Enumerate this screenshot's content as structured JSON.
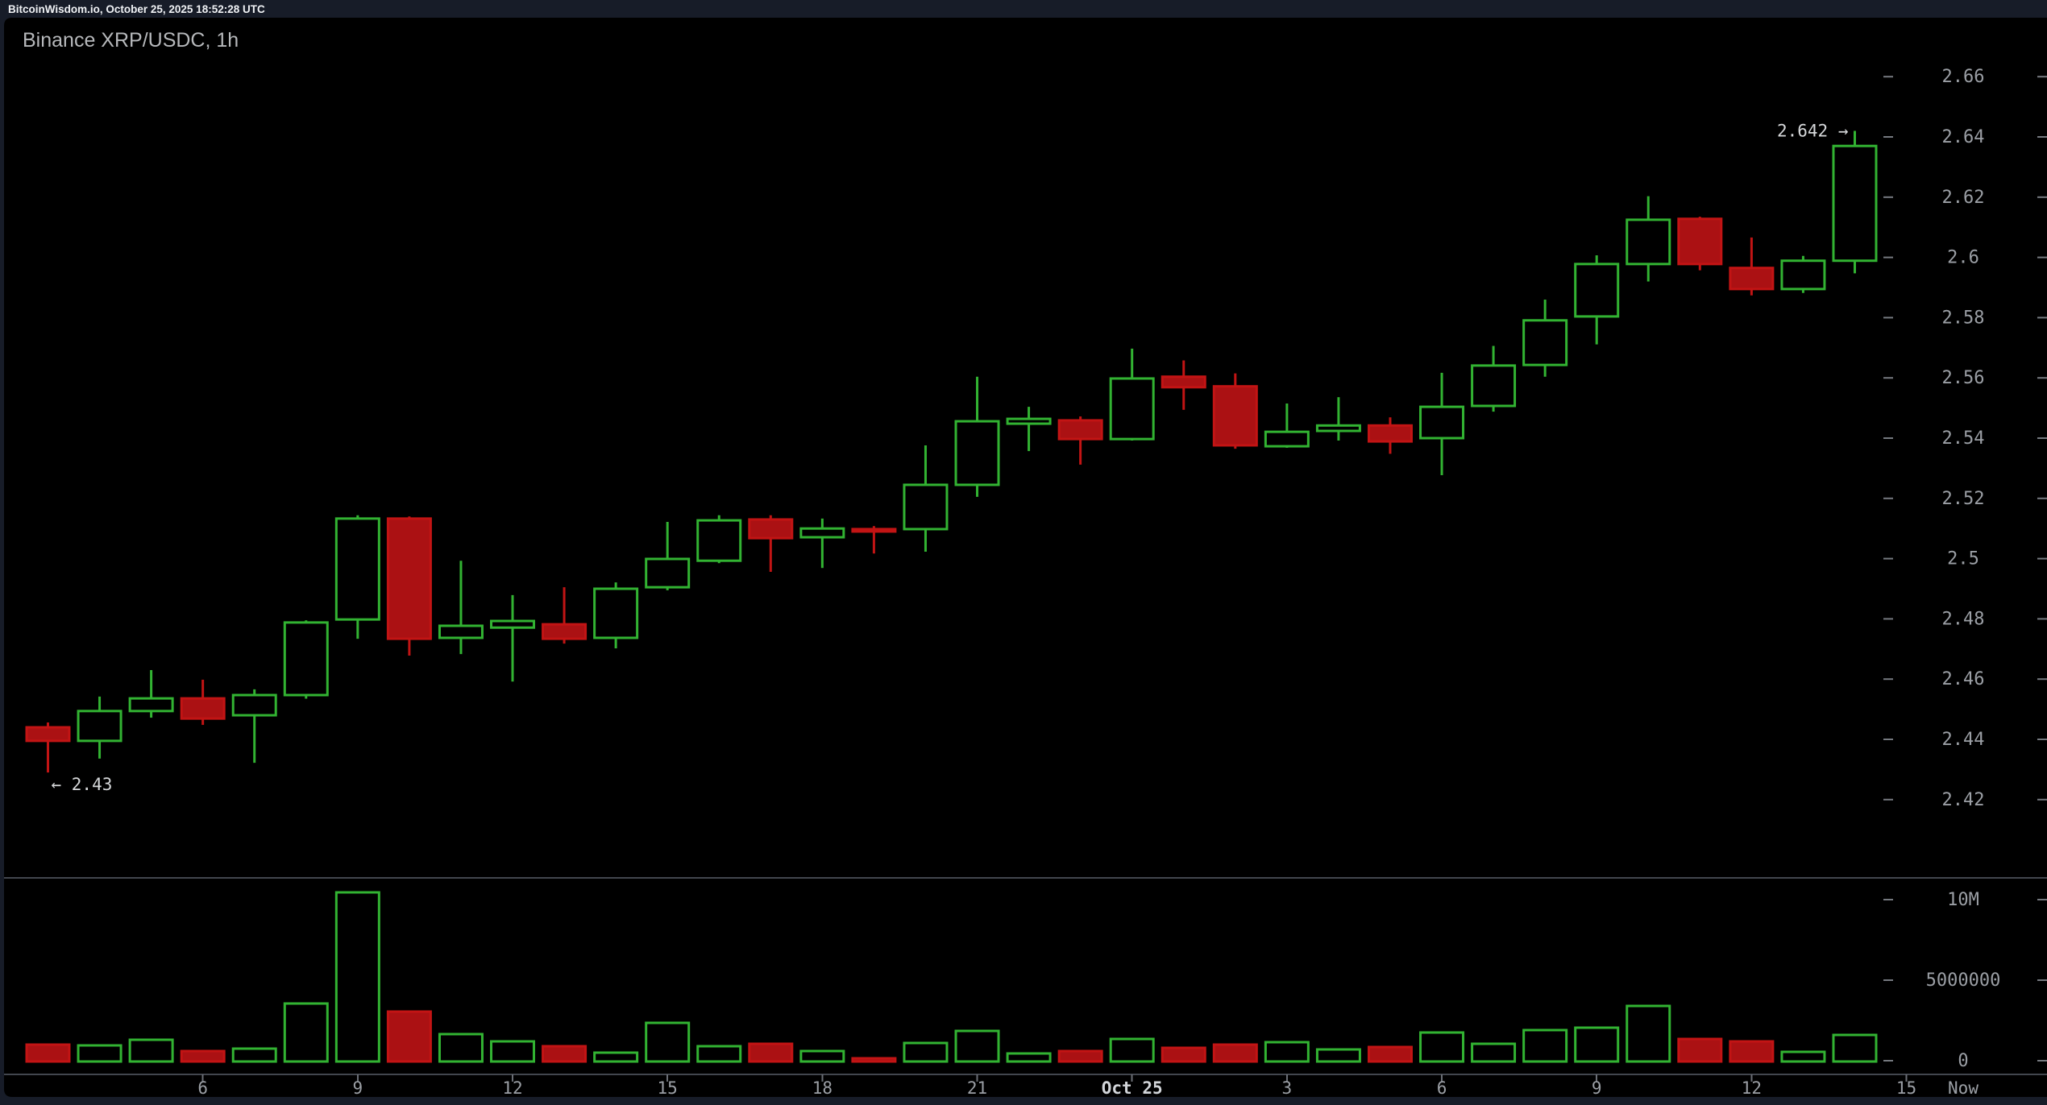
{
  "header": {
    "text": "BitcoinWisdom.io, October 25, 2025 18:52:28 UTC"
  },
  "chart": {
    "title": "Binance XRP/USDC, 1h",
    "symbol": "Binance XRP/USDC",
    "interval": "1h",
    "annotations": {
      "current_price_text": "2.642 →",
      "current_price": 2.642,
      "session_low_text": "← 2.43",
      "session_low_price": 2.429
    },
    "colors": {
      "background": "#000000",
      "frame": "#171c28",
      "up": "#32b332",
      "down_fill": "#ab1113",
      "down_stroke": "#c21414",
      "axis_text": "#9b9fa5",
      "axis_text_bright": "#d3d6da",
      "annotation_text": "#d6d8da",
      "tick_dash": "#75797f",
      "grid_line": "#42464e",
      "hour_tick": "#6a6e75",
      "title_text": "#b6b8bb",
      "header_text": "#f0f2f5"
    },
    "price_axis": {
      "ticks": [
        {
          "label": "2.66",
          "value": 2.66
        },
        {
          "label": "2.64",
          "value": 2.64
        },
        {
          "label": "2.62",
          "value": 2.62
        },
        {
          "label": "2.6",
          "value": 2.6
        },
        {
          "label": "2.58",
          "value": 2.58
        },
        {
          "label": "2.56",
          "value": 2.56
        },
        {
          "label": "2.54",
          "value": 2.54
        },
        {
          "label": "2.52",
          "value": 2.52
        },
        {
          "label": "2.5",
          "value": 2.5
        },
        {
          "label": "2.48",
          "value": 2.48
        },
        {
          "label": "2.46",
          "value": 2.46
        },
        {
          "label": "2.44",
          "value": 2.44
        },
        {
          "label": "2.42",
          "value": 2.42
        }
      ]
    },
    "volume_axis": {
      "ticks": [
        {
          "label": "10M",
          "value": 10000000
        },
        {
          "label": "5000000",
          "value": 5000000
        },
        {
          "label": "0",
          "value": 0
        }
      ]
    },
    "time_axis": {
      "labels": [
        {
          "text": "6",
          "offset": 3
        },
        {
          "text": "9",
          "offset": 6
        },
        {
          "text": "12",
          "offset": 9
        },
        {
          "text": "15",
          "offset": 12
        },
        {
          "text": "18",
          "offset": 15
        },
        {
          "text": "21",
          "offset": 18
        },
        {
          "text": "Oct 25",
          "offset": 21,
          "emphasis": true
        },
        {
          "text": "3",
          "offset": 24
        },
        {
          "text": "6",
          "offset": 27
        },
        {
          "text": "9",
          "offset": 30
        },
        {
          "text": "12",
          "offset": 33
        },
        {
          "text": "15",
          "offset": 36
        },
        {
          "text": "Now",
          "offset": 37.1,
          "is_now": true
        }
      ]
    }
  },
  "chart_data": {
    "type": "candlestick_with_volume",
    "title": "Binance XRP/USDC, 1h",
    "price_range": [
      2.42,
      2.66
    ],
    "volume_range": [
      0,
      10000000
    ],
    "candles": [
      {
        "time": "Oct 24 03:00",
        "o": 2.444,
        "h": 2.4456,
        "l": 2.429,
        "c": 2.4395,
        "v": 1000000
      },
      {
        "time": "Oct 24 04:00",
        "o": 2.4395,
        "h": 2.4542,
        "l": 2.4336,
        "c": 2.4494,
        "v": 950000
      },
      {
        "time": "Oct 24 05:00",
        "o": 2.4494,
        "h": 2.463,
        "l": 2.4472,
        "c": 2.4536,
        "v": 1300000
      },
      {
        "time": "Oct 24 06:00",
        "o": 2.4536,
        "h": 2.4598,
        "l": 2.4448,
        "c": 2.4469,
        "v": 600000
      },
      {
        "time": "Oct 24 07:00",
        "o": 2.448,
        "h": 2.4566,
        "l": 2.4322,
        "c": 2.4547,
        "v": 750000
      },
      {
        "time": "Oct 24 08:00",
        "o": 2.4547,
        "h": 2.4795,
        "l": 2.4535,
        "c": 2.4788,
        "v": 3550000
      },
      {
        "time": "Oct 24 09:00",
        "o": 2.4798,
        "h": 2.5144,
        "l": 2.4734,
        "c": 2.5133,
        "v": 10450000
      },
      {
        "time": "Oct 24 10:00",
        "o": 2.5133,
        "h": 2.514,
        "l": 2.4678,
        "c": 2.4734,
        "v": 3050000
      },
      {
        "time": "Oct 24 11:00",
        "o": 2.4737,
        "h": 2.4993,
        "l": 2.4683,
        "c": 2.4777,
        "v": 1650000
      },
      {
        "time": "Oct 24 12:00",
        "o": 2.4771,
        "h": 2.4879,
        "l": 2.4592,
        "c": 2.4793,
        "v": 1200000
      },
      {
        "time": "Oct 24 13:00",
        "o": 2.4782,
        "h": 2.4905,
        "l": 2.4718,
        "c": 2.4734,
        "v": 900000
      },
      {
        "time": "Oct 24 14:00",
        "o": 2.4737,
        "h": 2.4921,
        "l": 2.4702,
        "c": 2.49,
        "v": 500000
      },
      {
        "time": "Oct 24 15:00",
        "o": 2.4905,
        "h": 2.5122,
        "l": 2.4895,
        "c": 2.4999,
        "v": 2350000
      },
      {
        "time": "Oct 24 16:00",
        "o": 2.4993,
        "h": 2.5144,
        "l": 2.4985,
        "c": 2.5127,
        "v": 900000
      },
      {
        "time": "Oct 24 17:00",
        "o": 2.513,
        "h": 2.5144,
        "l": 2.4956,
        "c": 2.5068,
        "v": 1050000
      },
      {
        "time": "Oct 24 18:00",
        "o": 2.5071,
        "h": 2.5133,
        "l": 2.4969,
        "c": 2.51,
        "v": 600000
      },
      {
        "time": "Oct 24 19:00",
        "o": 2.5098,
        "h": 2.5108,
        "l": 2.5017,
        "c": 2.509,
        "v": 150000
      },
      {
        "time": "Oct 24 20:00",
        "o": 2.5098,
        "h": 2.5376,
        "l": 2.5023,
        "c": 2.5245,
        "v": 1100000
      },
      {
        "time": "Oct 24 21:00",
        "o": 2.5245,
        "h": 2.5604,
        "l": 2.5205,
        "c": 2.5456,
        "v": 1850000
      },
      {
        "time": "Oct 24 22:00",
        "o": 2.5448,
        "h": 2.5504,
        "l": 2.5357,
        "c": 2.5464,
        "v": 450000
      },
      {
        "time": "Oct 24 23:00",
        "o": 2.5459,
        "h": 2.5472,
        "l": 2.5312,
        "c": 2.5397,
        "v": 600000
      },
      {
        "time": "Oct 25 00:00",
        "o": 2.5397,
        "h": 2.5697,
        "l": 2.5392,
        "c": 2.5598,
        "v": 1350000
      },
      {
        "time": "Oct 25 01:00",
        "o": 2.5604,
        "h": 2.5658,
        "l": 2.5494,
        "c": 2.5569,
        "v": 800000
      },
      {
        "time": "Oct 25 02:00",
        "o": 2.5572,
        "h": 2.5615,
        "l": 2.5365,
        "c": 2.5376,
        "v": 1000000
      },
      {
        "time": "Oct 25 03:00",
        "o": 2.5373,
        "h": 2.5515,
        "l": 2.5368,
        "c": 2.5421,
        "v": 1150000
      },
      {
        "time": "Oct 25 04:00",
        "o": 2.5424,
        "h": 2.5536,
        "l": 2.5392,
        "c": 2.5442,
        "v": 700000
      },
      {
        "time": "Oct 25 05:00",
        "o": 2.5442,
        "h": 2.5469,
        "l": 2.5348,
        "c": 2.5389,
        "v": 850000
      },
      {
        "time": "Oct 25 06:00",
        "o": 2.54,
        "h": 2.5617,
        "l": 2.5277,
        "c": 2.5504,
        "v": 1750000
      },
      {
        "time": "Oct 25 07:00",
        "o": 2.5507,
        "h": 2.5706,
        "l": 2.5488,
        "c": 2.5641,
        "v": 1050000
      },
      {
        "time": "Oct 25 08:00",
        "o": 2.5643,
        "h": 2.586,
        "l": 2.5604,
        "c": 2.5791,
        "v": 1900000
      },
      {
        "time": "Oct 25 09:00",
        "o": 2.5804,
        "h": 2.6007,
        "l": 2.5711,
        "c": 2.5978,
        "v": 2050000
      },
      {
        "time": "Oct 25 10:00",
        "o": 2.5978,
        "h": 2.6203,
        "l": 2.592,
        "c": 2.6125,
        "v": 3400000
      },
      {
        "time": "Oct 25 11:00",
        "o": 2.6128,
        "h": 2.6135,
        "l": 2.5957,
        "c": 2.5978,
        "v": 1350000
      },
      {
        "time": "Oct 25 12:00",
        "o": 2.5965,
        "h": 2.6066,
        "l": 2.5874,
        "c": 2.5895,
        "v": 1200000
      },
      {
        "time": "Oct 25 13:00",
        "o": 2.5895,
        "h": 2.6005,
        "l": 2.5882,
        "c": 2.5989,
        "v": 550000
      },
      {
        "time": "Oct 25 14:00",
        "o": 2.5989,
        "h": 2.642,
        "l": 2.5947,
        "c": 2.637,
        "v": 1600000
      }
    ]
  }
}
